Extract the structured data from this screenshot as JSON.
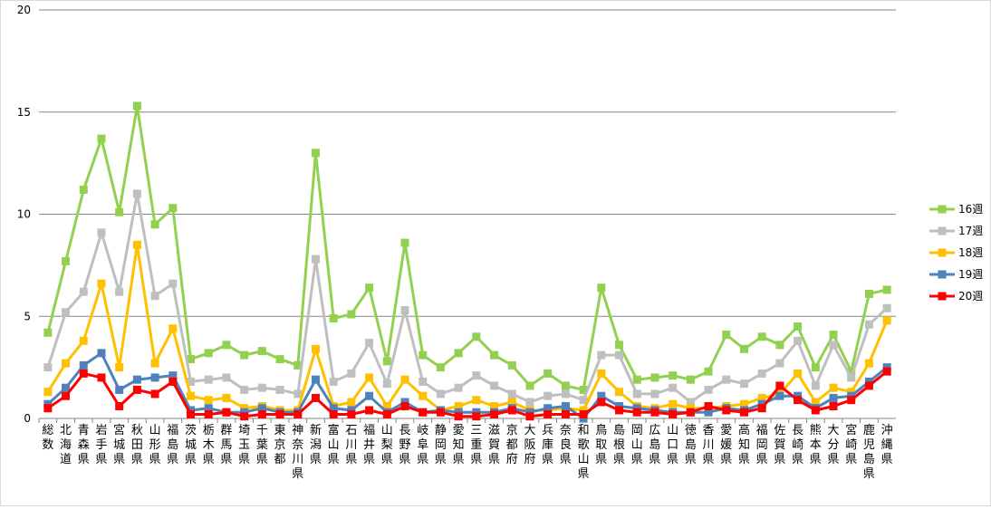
{
  "chart_data": {
    "type": "line",
    "title": "",
    "xlabel": "",
    "ylabel": "",
    "ylim": [
      0,
      20
    ],
    "yticks": [
      "0",
      "5",
      "10",
      "15",
      "20"
    ],
    "grid": "horizontal",
    "legend_position": "right",
    "categories": [
      "総数",
      "北海道",
      "青森県",
      "岩手県",
      "宮城県",
      "秋田県",
      "山形県",
      "福島県",
      "茨城県",
      "栃木県",
      "群馬県",
      "埼玉県",
      "千葉県",
      "東京都",
      "神奈川県",
      "新潟県",
      "富山県",
      "石川県",
      "福井県",
      "山梨県",
      "長野県",
      "岐阜県",
      "静岡県",
      "愛知県",
      "三重県",
      "滋賀県",
      "京都府",
      "大阪府",
      "兵庫県",
      "奈良県",
      "和歌山県",
      "鳥取県",
      "島根県",
      "岡山県",
      "広島県",
      "山口県",
      "徳島県",
      "香川県",
      "愛媛県",
      "高知県",
      "福岡県",
      "佐賀県",
      "長崎県",
      "熊本県",
      "大分県",
      "宮崎県",
      "鹿児島県",
      "沖縄県"
    ],
    "series": [
      {
        "name": "16週",
        "color": "#92d050",
        "values": [
          4.2,
          7.7,
          11.2,
          13.7,
          10.1,
          15.3,
          9.5,
          10.3,
          2.9,
          3.2,
          3.6,
          3.1,
          3.3,
          2.9,
          2.6,
          13.0,
          4.9,
          5.1,
          6.4,
          2.8,
          8.6,
          3.1,
          2.5,
          3.2,
          4.0,
          3.1,
          2.6,
          1.6,
          2.2,
          1.6,
          1.4,
          6.4,
          3.6,
          1.9,
          2.0,
          2.1,
          1.9,
          2.3,
          4.1,
          3.4,
          4.0,
          3.6,
          4.5,
          2.5,
          4.1,
          2.3,
          6.1,
          6.3
        ]
      },
      {
        "name": "17週",
        "color": "#bfbfbf",
        "values": [
          2.5,
          5.2,
          6.2,
          9.1,
          6.2,
          11.0,
          6.0,
          6.6,
          1.8,
          1.9,
          2.0,
          1.4,
          1.5,
          1.4,
          1.2,
          7.8,
          1.8,
          2.2,
          3.7,
          1.7,
          5.3,
          1.8,
          1.2,
          1.5,
          2.1,
          1.6,
          1.2,
          0.8,
          1.1,
          1.2,
          0.9,
          3.1,
          3.1,
          1.2,
          1.2,
          1.5,
          0.8,
          1.4,
          1.9,
          1.7,
          2.2,
          2.7,
          3.8,
          1.6,
          3.6,
          2.0,
          4.6,
          5.4
        ]
      },
      {
        "name": "18週",
        "color": "#ffc000",
        "values": [
          1.3,
          2.7,
          3.8,
          6.6,
          2.5,
          8.5,
          2.7,
          4.4,
          1.1,
          0.9,
          1.0,
          0.5,
          0.6,
          0.4,
          0.4,
          3.4,
          0.6,
          0.8,
          2.0,
          0.6,
          1.9,
          1.1,
          0.4,
          0.6,
          0.9,
          0.6,
          0.8,
          0.4,
          0.4,
          0.5,
          0.4,
          2.2,
          1.3,
          0.6,
          0.5,
          0.7,
          0.5,
          0.5,
          0.6,
          0.7,
          1.0,
          1.2,
          2.2,
          0.8,
          1.5,
          1.3,
          2.7,
          4.8
        ]
      },
      {
        "name": "19週",
        "color": "#4f81bd",
        "values": [
          0.7,
          1.5,
          2.6,
          3.2,
          1.4,
          1.9,
          2.0,
          2.1,
          0.4,
          0.5,
          0.3,
          0.3,
          0.5,
          0.3,
          0.3,
          1.9,
          0.5,
          0.4,
          1.1,
          0.3,
          0.8,
          0.3,
          0.4,
          0.3,
          0.3,
          0.3,
          0.5,
          0.3,
          0.5,
          0.6,
          0.0,
          1.1,
          0.6,
          0.5,
          0.4,
          0.3,
          0.3,
          0.3,
          0.5,
          0.4,
          0.7,
          1.1,
          1.1,
          0.5,
          1.0,
          1.1,
          1.8,
          2.5
        ]
      },
      {
        "name": "20週",
        "color": "#ff0000",
        "values": [
          0.5,
          1.1,
          2.2,
          2.0,
          0.6,
          1.4,
          1.2,
          1.8,
          0.2,
          0.2,
          0.3,
          0.1,
          0.2,
          0.2,
          0.2,
          1.0,
          0.2,
          0.2,
          0.4,
          0.2,
          0.6,
          0.3,
          0.3,
          0.1,
          0.1,
          0.2,
          0.4,
          0.1,
          0.2,
          0.2,
          0.2,
          0.8,
          0.4,
          0.3,
          0.3,
          0.2,
          0.3,
          0.6,
          0.4,
          0.3,
          0.5,
          1.6,
          0.9,
          0.4,
          0.6,
          0.9,
          1.6,
          2.3
        ]
      }
    ]
  }
}
